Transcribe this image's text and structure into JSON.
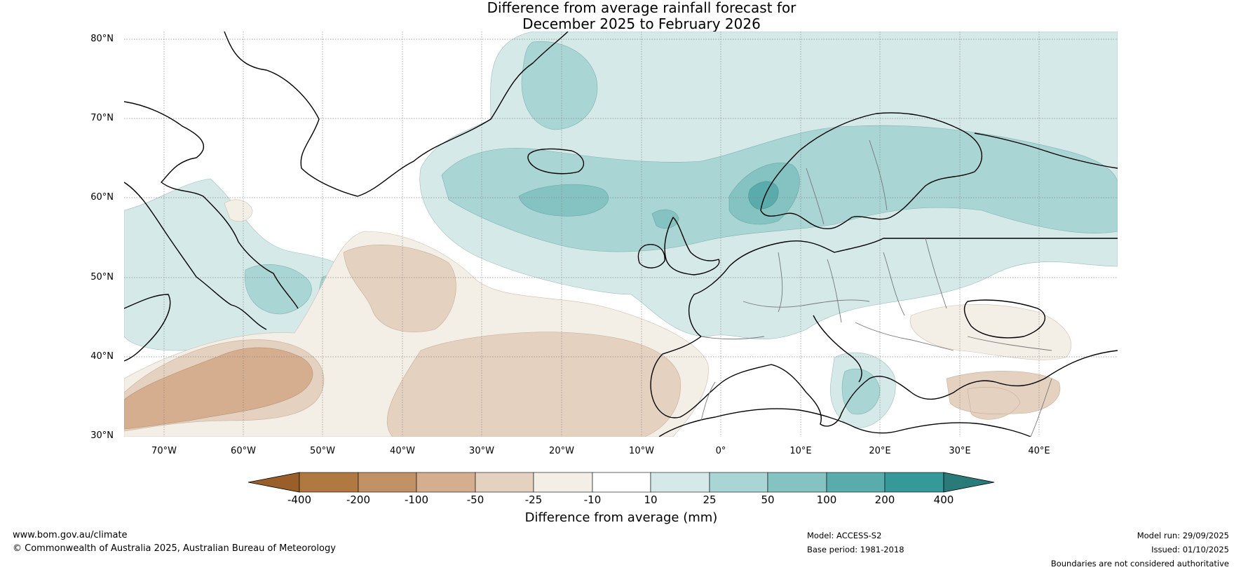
{
  "title": {
    "line1": "Difference from average rainfall forecast for",
    "line2": "December 2025 to February 2026"
  },
  "axes": {
    "lat_labels": [
      "80°N",
      "70°N",
      "60°N",
      "50°N",
      "40°N",
      "30°N"
    ],
    "lon_labels": [
      "70°W",
      "60°W",
      "50°W",
      "40°W",
      "30°W",
      "20°W",
      "10°W",
      "0°",
      "10°E",
      "20°E",
      "30°E",
      "40°E"
    ]
  },
  "colorbar": {
    "ticks": [
      "-400",
      "-200",
      "-100",
      "-50",
      "-25",
      "-10",
      "10",
      "25",
      "50",
      "100",
      "200",
      "400"
    ],
    "colors": [
      "#9a5f29",
      "#b07942",
      "#c29166",
      "#d4ae8e",
      "#e5d1c0",
      "#f3eee6",
      "#ffffff",
      "#d5e9e8",
      "#a9d5d5",
      "#85c3c3",
      "#5aabab",
      "#369999",
      "#2a7a7a"
    ],
    "label": "Difference from average (mm)"
  },
  "footer": {
    "website": "www.bom.gov.au/climate",
    "copyright": "© Commonwealth of Australia 2025, Australian Bureau of Meteorology",
    "model": "Model: ACCESS-S2",
    "base_period": "Base period: 1981-2018",
    "model_run": "Model run: 29/09/2025",
    "issued": "Issued: 01/10/2025",
    "disclaimer": "Boundaries are not considered authoritative"
  }
}
